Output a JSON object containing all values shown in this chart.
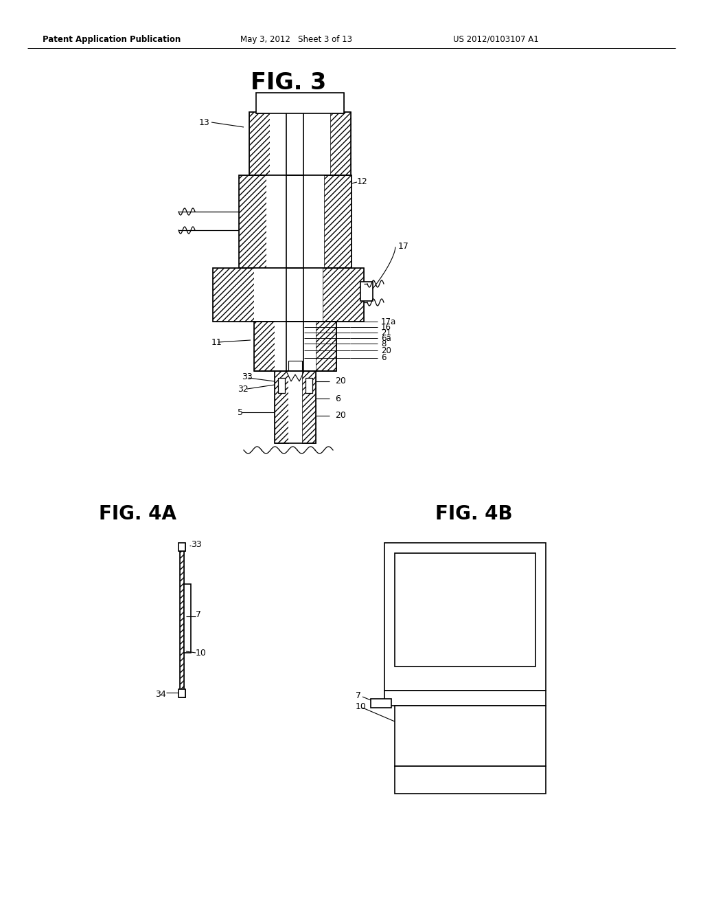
{
  "bg_color": "#ffffff",
  "text_color": "#000000",
  "line_color": "#000000",
  "header_left": "Patent Application Publication",
  "header_mid": "May 3, 2012   Sheet 3 of 13",
  "header_right": "US 2012/0103107 A1",
  "fig3_title": "FIG. 3",
  "fig4a_title": "FIG. 4A",
  "fig4b_title": "FIG. 4B"
}
